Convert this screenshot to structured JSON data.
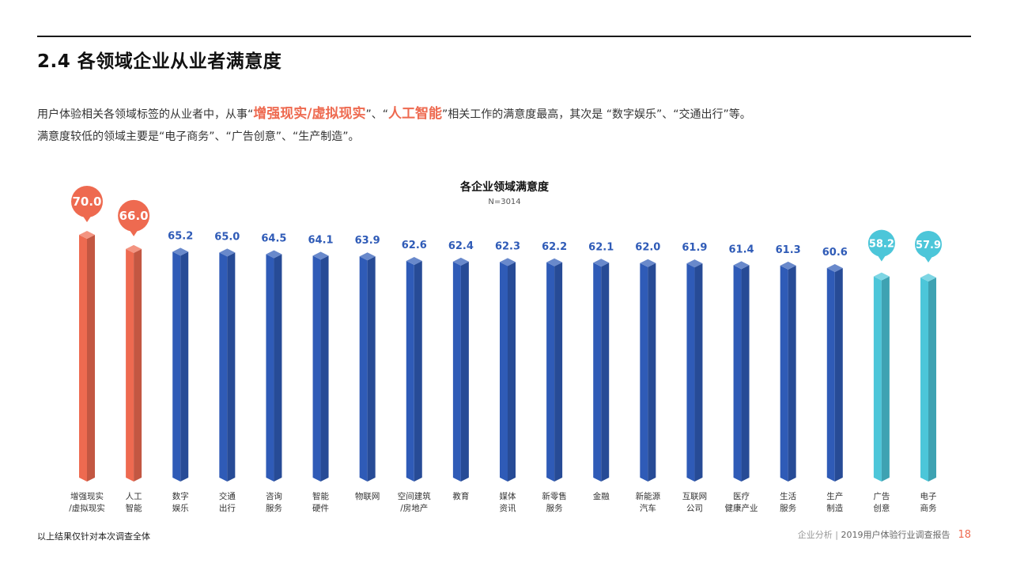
{
  "page": {
    "title": "2.4 各领域企业从业者满意度",
    "intro": {
      "p1_a": "用户体验相关各领域标签的从业者中，从事“",
      "p1_hl1": "增强现实/虚拟现实",
      "p1_b": "”、“",
      "p1_hl2": "人工智能",
      "p1_c": "”相关工作的满意度最高，其次是 “数字娱乐”、“交通出行”等。",
      "p2": "满意度较低的领域主要是“电子商务”、“广告创意”、“生产制造”。"
    },
    "footnote": "以上结果仅针对本次调查全体",
    "footer": {
      "section": "企业分析",
      "separator": " | ",
      "report": "2019用户体验行业调查报告",
      "page_number": "18"
    }
  },
  "colors": {
    "high": "#ee6a50",
    "mid": "#2f5bb7",
    "low": "#4cc6d9"
  },
  "chart_data": {
    "type": "bar",
    "title": "各企业领域满意度",
    "subtitle": "N=3014",
    "ylim": [
      0,
      70
    ],
    "categories": [
      [
        "增强现实",
        "/虚拟现实"
      ],
      [
        "人工",
        "智能"
      ],
      [
        "数字",
        "娱乐"
      ],
      [
        "交通",
        "出行"
      ],
      [
        "咨询",
        "服务"
      ],
      [
        "智能",
        "硬件"
      ],
      [
        "物联网"
      ],
      [
        "空间建筑",
        "/房地产"
      ],
      [
        "教育"
      ],
      [
        "媒体",
        "资讯"
      ],
      [
        "新零售",
        "服务"
      ],
      [
        "金融"
      ],
      [
        "新能源",
        "汽车"
      ],
      [
        "互联网",
        "公司"
      ],
      [
        "医疗",
        "健康产业"
      ],
      [
        "生活",
        "服务"
      ],
      [
        "生产",
        "制造"
      ],
      [
        "广告",
        "创意"
      ],
      [
        "电子",
        "商务"
      ]
    ],
    "values": [
      70.0,
      66.0,
      65.2,
      65.0,
      64.5,
      64.1,
      63.9,
      62.6,
      62.4,
      62.3,
      62.2,
      62.1,
      62.0,
      61.9,
      61.4,
      61.3,
      60.6,
      58.2,
      57.9
    ],
    "value_labels": [
      "70.0",
      "66.0",
      "65.2",
      "65.0",
      "64.5",
      "64.1",
      "63.9",
      "62.6",
      "62.4",
      "62.3",
      "62.2",
      "62.1",
      "62.0",
      "61.9",
      "61.4",
      "61.3",
      "60.6",
      "58.2",
      "57.9"
    ],
    "groups": [
      "high",
      "high",
      "mid",
      "mid",
      "mid",
      "mid",
      "mid",
      "mid",
      "mid",
      "mid",
      "mid",
      "mid",
      "mid",
      "mid",
      "mid",
      "mid",
      "mid",
      "low",
      "low"
    ],
    "xlabel": "",
    "ylabel": "",
    "grid": false,
    "legend": "none"
  }
}
